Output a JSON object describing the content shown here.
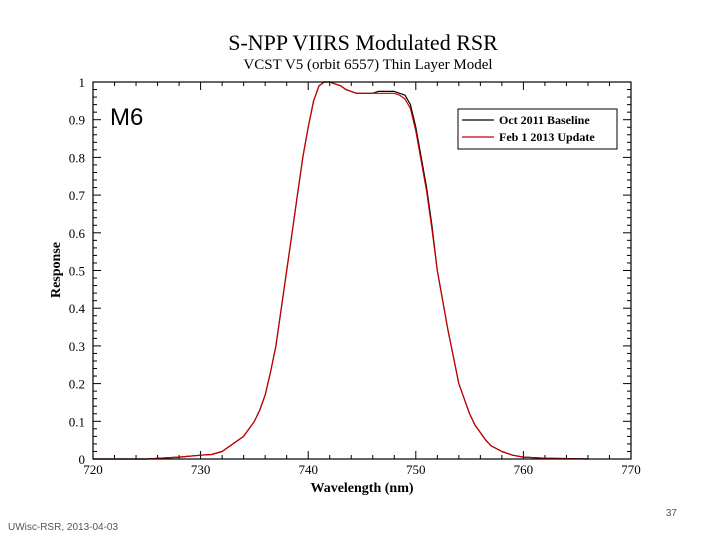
{
  "footer": {
    "source": "UWisc-RSR, 2013-04-03",
    "page_number": "37"
  },
  "chart_data": {
    "type": "line",
    "title": "S-NPP VIIRS Modulated RSR",
    "subtitle": "VCST V5 (orbit 6557) Thin Layer Model",
    "band_label": "M6",
    "xlabel": "Wavelength (nm)",
    "ylabel": "Response",
    "xlim": [
      720,
      770
    ],
    "ylim": [
      0,
      1
    ],
    "xticks": [
      720,
      730,
      740,
      750,
      760,
      770
    ],
    "yticks": [
      0,
      0.1,
      0.2,
      0.3,
      0.4,
      0.5,
      0.6,
      0.7,
      0.8,
      0.9,
      1
    ],
    "ytick_labels": [
      "0",
      "0.1",
      "0.2",
      "0.3",
      "0.4",
      "0.5",
      "0.6",
      "0.7",
      "0.8",
      "0.9",
      "1"
    ],
    "xtick_labels": [
      "720",
      "730",
      "740",
      "750",
      "760",
      "770"
    ],
    "legend": "top-right",
    "grid": false,
    "colors": {
      "baseline": "#000000",
      "update": "#cc0000",
      "axis": "#000000"
    },
    "series": [
      {
        "name": "Oct 2011 Baseline",
        "x": [
          720,
          725,
          728,
          730,
          731,
          732,
          733,
          734,
          735,
          735.5,
          736,
          736.5,
          737,
          737.5,
          738,
          738.5,
          739,
          739.5,
          740,
          740.5,
          741,
          741.5,
          742,
          742.5,
          743,
          743.5,
          744,
          744.5,
          745,
          745.5,
          746,
          746.5,
          747,
          747.5,
          748,
          748.5,
          749,
          749.5,
          750,
          750.5,
          751,
          751.5,
          752,
          752.5,
          753,
          753.5,
          754,
          754.5,
          755,
          755.5,
          756,
          756.5,
          757,
          758,
          759,
          760,
          762,
          766
        ],
        "values": [
          0.0,
          0.0,
          0.005,
          0.01,
          0.012,
          0.02,
          0.04,
          0.06,
          0.1,
          0.13,
          0.17,
          0.23,
          0.3,
          0.4,
          0.5,
          0.6,
          0.7,
          0.8,
          0.88,
          0.95,
          0.99,
          1.0,
          1.0,
          0.995,
          0.99,
          0.98,
          0.975,
          0.97,
          0.97,
          0.97,
          0.97,
          0.975,
          0.975,
          0.975,
          0.975,
          0.97,
          0.965,
          0.94,
          0.88,
          0.8,
          0.72,
          0.62,
          0.5,
          0.42,
          0.34,
          0.27,
          0.2,
          0.16,
          0.12,
          0.09,
          0.07,
          0.05,
          0.035,
          0.02,
          0.01,
          0.005,
          0.002,
          0.0
        ]
      },
      {
        "name": "Feb 1 2013 Update",
        "x": [
          720,
          725,
          728,
          730,
          731,
          732,
          733,
          734,
          735,
          735.5,
          736,
          736.5,
          737,
          737.5,
          738,
          738.5,
          739,
          739.5,
          740,
          740.5,
          741,
          741.5,
          742,
          742.5,
          743,
          743.5,
          744,
          744.5,
          745,
          745.5,
          746,
          746.5,
          747,
          747.5,
          748,
          748.5,
          749,
          749.5,
          750,
          750.5,
          751,
          751.5,
          752,
          752.5,
          753,
          753.5,
          754,
          754.5,
          755,
          755.5,
          756,
          756.5,
          757,
          758,
          759,
          760,
          762,
          766
        ],
        "values": [
          0.0,
          0.0,
          0.005,
          0.01,
          0.012,
          0.02,
          0.04,
          0.06,
          0.1,
          0.13,
          0.17,
          0.23,
          0.3,
          0.4,
          0.5,
          0.6,
          0.7,
          0.8,
          0.88,
          0.95,
          0.99,
          1.0,
          1.0,
          0.995,
          0.99,
          0.98,
          0.975,
          0.97,
          0.97,
          0.97,
          0.97,
          0.97,
          0.97,
          0.97,
          0.97,
          0.965,
          0.955,
          0.93,
          0.87,
          0.79,
          0.71,
          0.61,
          0.5,
          0.42,
          0.34,
          0.27,
          0.2,
          0.16,
          0.12,
          0.09,
          0.07,
          0.05,
          0.035,
          0.02,
          0.01,
          0.005,
          0.002,
          0.0
        ]
      }
    ]
  }
}
